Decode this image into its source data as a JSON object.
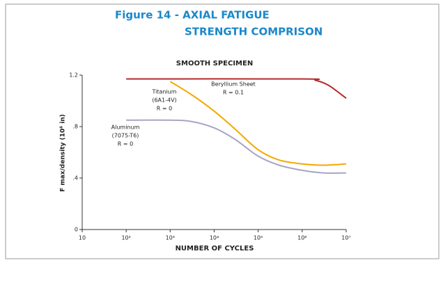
{
  "chart_data": {
    "type": "line",
    "title": [
      "Figure 14 - AXIAL FATIGUE",
      "STRENGTH COMPRISON"
    ],
    "subtitle": "SMOOTH SPECIMEN",
    "x_label": "NUMBER OF CYCLES",
    "y_label": "F max/density (10⁶ in)",
    "xscale": "log",
    "xlim": [
      10,
      10000000
    ],
    "xticks": [
      10,
      {
        "value": 100,
        "label": "10²"
      },
      {
        "value": 1000,
        "label": "10³"
      },
      {
        "value": 10000,
        "label": "10⁴"
      },
      {
        "value": 100000,
        "label": "10⁵"
      },
      {
        "value": 1000000,
        "label": "10⁶"
      },
      {
        "value": 10000000,
        "label": "10⁷"
      }
    ],
    "ylim": [
      0,
      1.2
    ],
    "yticks": [
      0,
      {
        "value": 0.4,
        "label": ".4"
      },
      {
        "value": 0.8,
        "label": ".8"
      },
      1.2
    ],
    "series": [
      {
        "name": "Beryllium Sheet",
        "detail": [
          "R = 0.1"
        ],
        "color": "#b52a2a",
        "x": [
          100,
          1000000,
          2000000,
          4000000,
          10000000
        ],
        "values": [
          1.17,
          1.17,
          1.16,
          1.12,
          1.02
        ]
      },
      {
        "name": "Titanium",
        "detail": [
          "(6A1-4V)",
          "R = 0"
        ],
        "color": "#f5a800",
        "x": [
          1000,
          3000,
          10000,
          30000,
          100000,
          300000,
          1000000,
          3000000,
          10000000
        ],
        "values": [
          1.15,
          1.05,
          0.92,
          0.78,
          0.62,
          0.54,
          0.51,
          0.5,
          0.51
        ]
      },
      {
        "name": "Aluminum",
        "detail": [
          "(7075-T6)",
          "R = 0"
        ],
        "color": "#aaa4c2",
        "x": [
          100,
          1000,
          3000,
          10000,
          30000,
          100000,
          300000,
          1000000,
          3000000,
          10000000
        ],
        "values": [
          0.85,
          0.85,
          0.84,
          0.79,
          0.7,
          0.57,
          0.5,
          0.46,
          0.44,
          0.44
        ]
      }
    ]
  }
}
